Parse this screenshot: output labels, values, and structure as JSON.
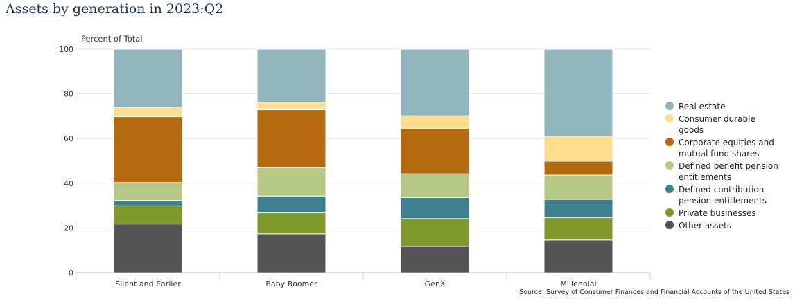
{
  "title": "Assets by generation in 2023:Q2",
  "source": "Source: Survey of Consumer Finances and Financial Accounts of the United States",
  "chart_data": {
    "type": "bar",
    "stacked": true,
    "ylabel": "Percent of Total",
    "ylim": [
      0,
      100
    ],
    "yticks": [
      0,
      20,
      40,
      60,
      80,
      100
    ],
    "grid": true,
    "legend_position": "right",
    "categories": [
      "Silent and Earlier",
      "Baby Boomer",
      "GenX",
      "Millennial"
    ],
    "series": [
      {
        "name": "Other assets",
        "color": "#555555",
        "values": [
          21.8,
          17.4,
          11.8,
          14.6
        ]
      },
      {
        "name": "Private businesses",
        "color": "#7f9a2a",
        "values": [
          8.1,
          9.4,
          12.4,
          10.1
        ]
      },
      {
        "name": "Defined contribution pension entitlements",
        "color": "#3f8090",
        "values": [
          2.4,
          7.5,
          9.4,
          8.1
        ]
      },
      {
        "name": "Defined benefit pension entitlements",
        "color": "#b6c886",
        "values": [
          8.0,
          12.7,
          10.6,
          10.8
        ]
      },
      {
        "name": "Corporate equities and mutual fund shares",
        "color": "#b66a0f",
        "values": [
          29.5,
          25.9,
          20.4,
          6.3
        ]
      },
      {
        "name": "Consumer durable goods",
        "color": "#fedd8f",
        "values": [
          4.2,
          3.3,
          5.6,
          11.2
        ]
      },
      {
        "name": "Real estate",
        "color": "#92b5be",
        "values": [
          26.0,
          23.8,
          29.8,
          38.9
        ]
      }
    ]
  }
}
